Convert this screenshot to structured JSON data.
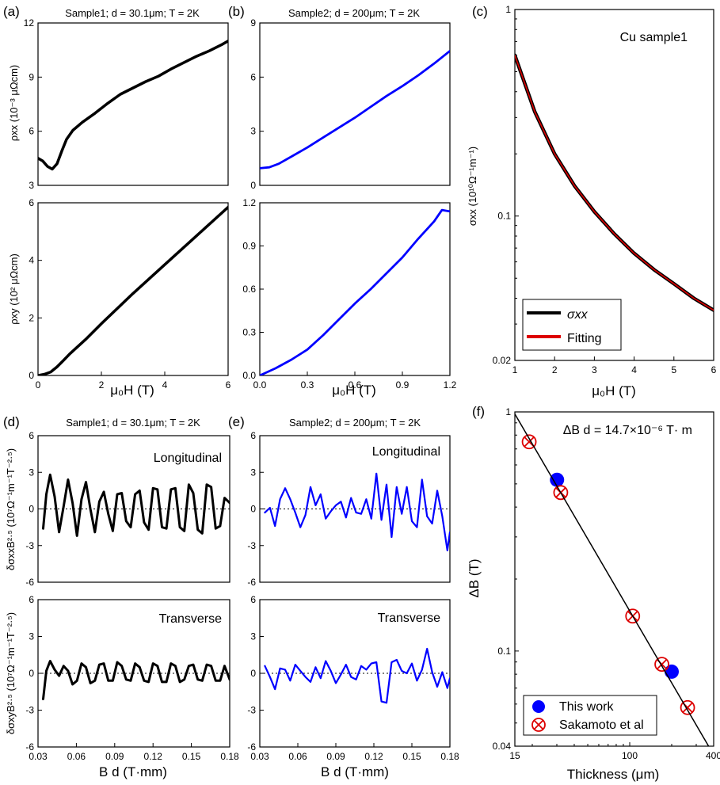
{
  "colors": {
    "black": "#000000",
    "blue": "#0000ff",
    "red": "#dd0000"
  },
  "chart_data": [
    {
      "id": "a1",
      "panel": "(a)",
      "type": "line",
      "title": "Sample1; d = 30.1μm; T = 2K",
      "ylabel": "ρxx (10⁻³ μΩcm)",
      "xlim": [
        0,
        6
      ],
      "ylim": [
        3,
        12
      ],
      "yticks": [
        "3",
        "6",
        "9",
        "12"
      ],
      "series": [
        {
          "color": "#000000",
          "x": [
            0,
            0.15,
            0.3,
            0.45,
            0.6,
            0.75,
            0.9,
            1.1,
            1.4,
            1.8,
            2.2,
            2.6,
            3.0,
            3.4,
            3.8,
            4.2,
            4.6,
            5.0,
            5.4,
            5.8,
            6.0
          ],
          "y": [
            4.5,
            4.35,
            4.05,
            3.9,
            4.2,
            4.9,
            5.55,
            6.05,
            6.5,
            7.0,
            7.55,
            8.05,
            8.4,
            8.75,
            9.05,
            9.45,
            9.8,
            10.15,
            10.45,
            10.8,
            11.0
          ]
        }
      ]
    },
    {
      "id": "a2",
      "type": "line",
      "xlabel": "μ₀H (T)",
      "ylabel": "ρxy (10² μΩcm)",
      "xlim": [
        0,
        6
      ],
      "ylim": [
        0,
        6
      ],
      "xticks": [
        "0",
        "2",
        "4",
        "6"
      ],
      "yticks": [
        "0",
        "2",
        "4",
        "6"
      ],
      "series": [
        {
          "color": "#000000",
          "x": [
            0,
            0.2,
            0.4,
            0.6,
            0.8,
            1.0,
            1.5,
            2.0,
            3.0,
            4.0,
            5.0,
            6.0
          ],
          "y": [
            0,
            0.04,
            0.12,
            0.3,
            0.52,
            0.75,
            1.25,
            1.8,
            2.85,
            3.85,
            4.85,
            5.85
          ]
        }
      ]
    },
    {
      "id": "b1",
      "panel": "(b)",
      "type": "line",
      "title": "Sample2; d = 200μm; T = 2K",
      "xlim": [
        0,
        6
      ],
      "ylim": [
        0,
        9
      ],
      "yticks": [
        "0",
        "3",
        "6",
        "9"
      ],
      "series": [
        {
          "color": "#0000ff",
          "x": [
            0,
            0.3,
            0.6,
            1.0,
            1.5,
            2.0,
            2.5,
            3.0,
            3.5,
            4.0,
            4.5,
            5.0,
            5.5,
            6.0
          ],
          "y": [
            0.95,
            1.0,
            1.2,
            1.6,
            2.1,
            2.65,
            3.2,
            3.75,
            4.35,
            4.95,
            5.5,
            6.1,
            6.75,
            7.45
          ]
        }
      ]
    },
    {
      "id": "b2",
      "type": "line",
      "xlabel": "μ₀H (T)",
      "xlim": [
        0,
        1.2
      ],
      "ylim": [
        0,
        1.2
      ],
      "xticks": [
        "0.0",
        "0.3",
        "0.6",
        "0.9",
        "1.2"
      ],
      "yticks": [
        "0.0",
        "0.3",
        "0.6",
        "0.9",
        "1.2"
      ],
      "series": [
        {
          "color": "#0000ff",
          "x": [
            0,
            0.1,
            0.2,
            0.3,
            0.4,
            0.5,
            0.6,
            0.7,
            0.8,
            0.9,
            1.0,
            1.1,
            1.15,
            1.2
          ],
          "y": [
            0,
            0.05,
            0.11,
            0.18,
            0.28,
            0.39,
            0.5,
            0.6,
            0.71,
            0.82,
            0.95,
            1.07,
            1.15,
            1.14
          ]
        }
      ]
    },
    {
      "id": "c",
      "panel": "(c)",
      "type": "line",
      "xlabel": "μ₀H (T)",
      "ylabel": "σxx (10¹⁰Ω⁻¹m⁻¹)",
      "annotation": "Cu sample1",
      "xlim": [
        1,
        6
      ],
      "ylim": [
        0.02,
        1
      ],
      "ylog": true,
      "xticks": [
        "1",
        "2",
        "3",
        "4",
        "5",
        "6"
      ],
      "yticks": [
        "0.02",
        "0.1",
        "1"
      ],
      "legend": {
        "position": "bottom-left",
        "entries": [
          {
            "label": "σxx",
            "color": "#000000"
          },
          {
            "label": "Fitting",
            "color": "#dd0000"
          }
        ]
      },
      "series": [
        {
          "name": "σxx",
          "color": "#000000",
          "x": [
            1,
            1.5,
            2,
            2.5,
            3,
            3.5,
            4,
            4.5,
            5,
            5.5,
            6
          ],
          "y": [
            0.6,
            0.32,
            0.2,
            0.14,
            0.105,
            0.082,
            0.066,
            0.055,
            0.047,
            0.04,
            0.035
          ]
        },
        {
          "name": "Fitting",
          "color": "#dd0000",
          "x": [
            1,
            1.5,
            2,
            2.5,
            3,
            3.5,
            4,
            4.5,
            5,
            5.5,
            6
          ],
          "y": [
            0.6,
            0.32,
            0.2,
            0.14,
            0.105,
            0.082,
            0.066,
            0.055,
            0.047,
            0.04,
            0.035
          ]
        }
      ]
    },
    {
      "id": "d1",
      "panel": "(d)",
      "type": "line",
      "title": "Sample1; d = 30.1μm; T = 2K",
      "annotation": "Longitudinal",
      "ylabel": "δσxxB²·⁵ (10⁷Ω⁻¹m⁻¹T⁻²·⁵)",
      "xlim": [
        0.03,
        0.18
      ],
      "ylim": [
        -6,
        6
      ],
      "yticks": [
        "-6",
        "-3",
        "0",
        "3",
        "6"
      ],
      "series": [
        {
          "color": "#000000",
          "x": [
            0.034,
            0.0365,
            0.0395,
            0.043,
            0.0465,
            0.05,
            0.0535,
            0.057,
            0.0605,
            0.064,
            0.0675,
            0.071,
            0.0745,
            0.078,
            0.0815,
            0.085,
            0.0885,
            0.092,
            0.0955,
            0.099,
            0.1025,
            0.106,
            0.1095,
            0.113,
            0.1165,
            0.12,
            0.1235,
            0.127,
            0.1305,
            0.134,
            0.1375,
            0.141,
            0.1445,
            0.148,
            0.1515,
            0.155,
            0.1585,
            0.162,
            0.1655,
            0.169,
            0.1725,
            0.176,
            0.18
          ],
          "y": [
            -1.6,
            1.2,
            2.8,
            1.0,
            -1.9,
            0.2,
            2.4,
            0.5,
            -2.2,
            0.8,
            2.2,
            0.0,
            -1.9,
            0.6,
            1.4,
            -0.4,
            -1.8,
            1.2,
            1.3,
            -1.0,
            -1.5,
            1.2,
            1.5,
            -1.1,
            -1.7,
            1.7,
            1.6,
            -1.5,
            -1.6,
            1.6,
            1.7,
            -1.5,
            -1.8,
            2.0,
            1.3,
            -1.7,
            -2.0,
            2.0,
            1.8,
            -1.6,
            -1.4,
            0.9,
            0.5
          ]
        }
      ]
    },
    {
      "id": "d2",
      "type": "line",
      "annotation": "Transverse",
      "xlabel": "B d  (T·mm)",
      "ylabel": "δσxyB²·⁵ (10⁷Ω⁻¹m⁻¹T⁻²·⁵)",
      "xlim": [
        0.03,
        0.18
      ],
      "ylim": [
        -6,
        6
      ],
      "xticks": [
        "0.03",
        "0.06",
        "0.09",
        "0.12",
        "0.15",
        "0.18"
      ],
      "yticks": [
        "-6",
        "-3",
        "0",
        "3",
        "6"
      ],
      "series": [
        {
          "color": "#000000",
          "x": [
            0.034,
            0.0365,
            0.0395,
            0.043,
            0.0465,
            0.05,
            0.0535,
            0.057,
            0.0605,
            0.064,
            0.0675,
            0.071,
            0.0745,
            0.078,
            0.0815,
            0.085,
            0.0885,
            0.092,
            0.0955,
            0.099,
            0.1025,
            0.106,
            0.1095,
            0.113,
            0.1165,
            0.12,
            0.1235,
            0.127,
            0.1305,
            0.134,
            0.1375,
            0.141,
            0.1445,
            0.148,
            0.1515,
            0.155,
            0.1585,
            0.162,
            0.1655,
            0.169,
            0.1725,
            0.176,
            0.18
          ],
          "y": [
            -2.1,
            0.2,
            1.0,
            0.3,
            -0.2,
            0.6,
            0.2,
            -0.9,
            -0.6,
            0.8,
            0.5,
            -0.8,
            -0.6,
            0.7,
            0.8,
            -0.6,
            -0.6,
            0.9,
            0.6,
            -0.5,
            -0.6,
            0.8,
            0.5,
            -0.6,
            -0.7,
            0.8,
            0.6,
            -0.7,
            -0.7,
            0.8,
            0.6,
            -0.7,
            -0.5,
            0.6,
            0.7,
            -0.5,
            -0.6,
            0.7,
            0.6,
            -0.6,
            -0.6,
            0.6,
            -0.5
          ]
        }
      ]
    },
    {
      "id": "e1",
      "panel": "(e)",
      "type": "line",
      "title": "Sample2; d = 200μm; T = 2K",
      "annotation": "Longitudinal",
      "xlim": [
        0.03,
        0.18
      ],
      "ylim": [
        -6,
        6
      ],
      "yticks": [
        "-6",
        "-3",
        "0",
        "3",
        "6"
      ],
      "series": [
        {
          "color": "#0000ff",
          "x": [
            0.034,
            0.038,
            0.042,
            0.046,
            0.05,
            0.054,
            0.058,
            0.062,
            0.066,
            0.07,
            0.074,
            0.078,
            0.082,
            0.086,
            0.09,
            0.094,
            0.098,
            0.102,
            0.106,
            0.11,
            0.114,
            0.118,
            0.122,
            0.126,
            0.13,
            0.134,
            0.138,
            0.142,
            0.146,
            0.15,
            0.154,
            0.158,
            0.162,
            0.166,
            0.17,
            0.174,
            0.178,
            0.18
          ],
          "y": [
            -0.3,
            0.1,
            -1.4,
            0.8,
            1.7,
            0.8,
            -0.3,
            -1.5,
            -0.5,
            1.8,
            0.3,
            1.2,
            -0.8,
            -0.2,
            0.3,
            0.6,
            -0.7,
            0.9,
            -0.3,
            -0.4,
            0.8,
            -0.8,
            2.9,
            -0.9,
            2.0,
            -2.3,
            1.8,
            -0.4,
            1.8,
            -1.0,
            -1.5,
            2.4,
            -0.6,
            -1.2,
            1.5,
            -0.6,
            -3.4,
            -1.9
          ]
        }
      ]
    },
    {
      "id": "e2",
      "type": "line",
      "annotation": "Transverse",
      "xlabel": "B d  (T·mm)",
      "xlim": [
        0.03,
        0.18
      ],
      "ylim": [
        -6,
        6
      ],
      "xticks": [
        "0.03",
        "0.06",
        "0.09",
        "0.12",
        "0.15",
        "0.18"
      ],
      "yticks": [
        "-6",
        "-3",
        "0",
        "3",
        "6"
      ],
      "series": [
        {
          "color": "#0000ff",
          "x": [
            0.034,
            0.038,
            0.042,
            0.046,
            0.05,
            0.054,
            0.058,
            0.062,
            0.066,
            0.07,
            0.074,
            0.078,
            0.082,
            0.086,
            0.09,
            0.094,
            0.098,
            0.102,
            0.106,
            0.11,
            0.114,
            0.118,
            0.122,
            0.126,
            0.13,
            0.134,
            0.138,
            0.142,
            0.146,
            0.15,
            0.154,
            0.158,
            0.162,
            0.166,
            0.17,
            0.174,
            0.178,
            0.18
          ],
          "y": [
            0.6,
            -0.3,
            -1.3,
            0.4,
            0.3,
            -0.6,
            0.7,
            0.2,
            -0.3,
            -0.7,
            0.5,
            -0.4,
            1.0,
            0.2,
            -0.8,
            -0.1,
            0.7,
            -0.3,
            -0.5,
            0.6,
            0.3,
            0.8,
            0.9,
            -2.3,
            -2.4,
            0.9,
            1.1,
            0.2,
            0.0,
            0.8,
            -0.6,
            0.3,
            2.0,
            0.1,
            -1.1,
            0.1,
            -1.2,
            -0.4
          ]
        }
      ]
    },
    {
      "id": "f",
      "panel": "(f)",
      "type": "scatter",
      "xlabel": "Thickness (μm)",
      "ylabel": "ΔB (T)",
      "annotation": "ΔB d = 14.7×10⁻⁶ T· m",
      "xlog": true,
      "ylog": true,
      "xlim": [
        15,
        400
      ],
      "ylim": [
        0.04,
        1
      ],
      "xticks": [
        "15",
        "100",
        "400"
      ],
      "yticks": [
        "0.04",
        "0.1",
        "1"
      ],
      "legend": {
        "position": "bottom-left",
        "entries": [
          {
            "label": "This work",
            "color": "#0000ff",
            "marker": "filled-circle"
          },
          {
            "label": "Sakamoto et al",
            "color": "#dd0000",
            "marker": "crossed-circle"
          }
        ]
      },
      "series": [
        {
          "name": "This work",
          "color": "#0000ff",
          "x": [
            30.1,
            200
          ],
          "y": [
            0.52,
            0.082
          ]
        },
        {
          "name": "Sakamoto et al",
          "color": "#dd0000",
          "x": [
            19,
            32,
            105,
            170,
            260
          ],
          "y": [
            0.75,
            0.46,
            0.14,
            0.088,
            0.058
          ]
        },
        {
          "name": "fit",
          "color": "#000000",
          "x": [
            15,
            400
          ],
          "y": [
            0.98,
            0.0368
          ],
          "line": true
        }
      ]
    }
  ]
}
